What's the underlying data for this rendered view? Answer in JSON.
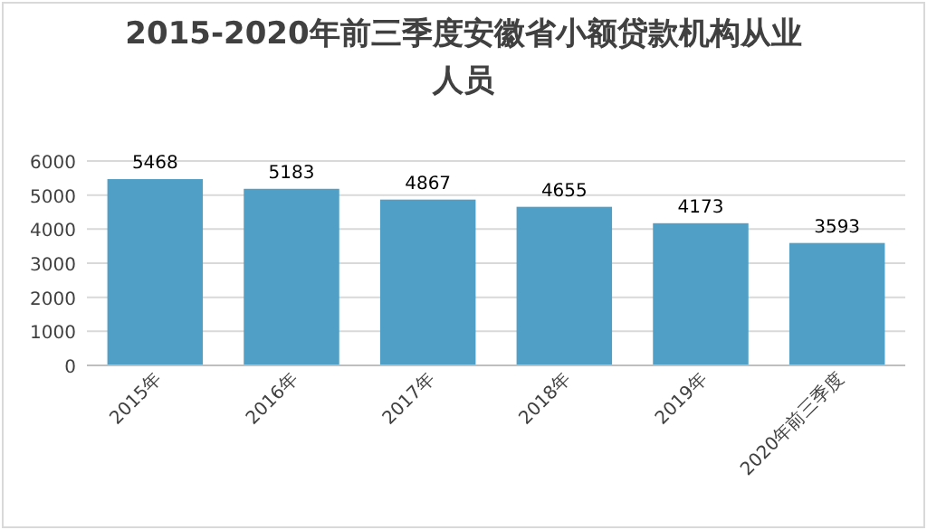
{
  "chart_data": {
    "type": "bar",
    "title": "2015-2020年前三季度安徽省小额贷款机构从业人员",
    "categories": [
      "2015年",
      "2016年",
      "2017年",
      "2018年",
      "2019年",
      "2020年前三季度"
    ],
    "values": [
      5468,
      5183,
      4867,
      4655,
      4173,
      3593
    ],
    "color": "#4f9fc6",
    "ylim": [
      0,
      6000
    ],
    "yticks": [
      0,
      1000,
      2000,
      3000,
      4000,
      5000,
      6000
    ],
    "grid": "y",
    "data_labels": true
  }
}
